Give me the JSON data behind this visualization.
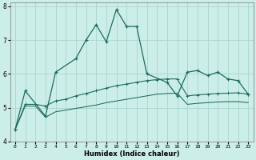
{
  "xlabel": "Humidex (Indice chaleur)",
  "bg_color": "#cceee8",
  "grid_color": "#aad4cc",
  "line_color": "#1e6b5e",
  "xlim": [
    -0.5,
    23.5
  ],
  "ylim": [
    4,
    8.1
  ],
  "yticks": [
    4,
    5,
    6,
    7,
    8
  ],
  "xticks": [
    0,
    1,
    2,
    3,
    4,
    5,
    6,
    7,
    8,
    9,
    10,
    11,
    12,
    13,
    14,
    15,
    16,
    17,
    18,
    19,
    20,
    21,
    22,
    23
  ],
  "s1_x": [
    0,
    1,
    3,
    4,
    6,
    7,
    8,
    9,
    10,
    11,
    12,
    13,
    15,
    16,
    17,
    18,
    19,
    20,
    21,
    22,
    23
  ],
  "s1_y": [
    4.35,
    5.5,
    4.75,
    6.05,
    6.45,
    7.0,
    7.45,
    6.95,
    7.9,
    7.4,
    7.4,
    6.0,
    5.75,
    5.35,
    6.05,
    6.1,
    5.95,
    6.05,
    5.85,
    5.8,
    5.4
  ],
  "s2_x": [
    0,
    1,
    2,
    3,
    4,
    5,
    6,
    7,
    8,
    9,
    10,
    11,
    12,
    13,
    14,
    15,
    16,
    17,
    18,
    19,
    20,
    21,
    22,
    23
  ],
  "s2_y": [
    4.35,
    5.1,
    5.1,
    5.05,
    5.2,
    5.25,
    5.35,
    5.42,
    5.5,
    5.58,
    5.65,
    5.7,
    5.75,
    5.8,
    5.83,
    5.85,
    5.85,
    5.35,
    5.38,
    5.4,
    5.42,
    5.43,
    5.44,
    5.4
  ],
  "s3_x": [
    0,
    1,
    2,
    3,
    4,
    5,
    6,
    7,
    8,
    9,
    10,
    11,
    12,
    13,
    14,
    15,
    16,
    17,
    18,
    19,
    20,
    21,
    22,
    23
  ],
  "s3_y": [
    4.35,
    5.05,
    5.05,
    4.72,
    4.88,
    4.93,
    4.98,
    5.03,
    5.08,
    5.15,
    5.2,
    5.25,
    5.3,
    5.35,
    5.4,
    5.42,
    5.43,
    5.1,
    5.13,
    5.15,
    5.17,
    5.18,
    5.18,
    5.15
  ]
}
